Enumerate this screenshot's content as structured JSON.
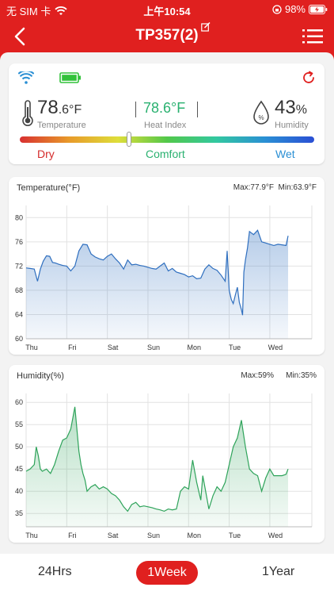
{
  "status_bar": {
    "carrier": "无 SIM 卡",
    "time": "上午10:54",
    "battery": "98%",
    "icons": [
      "wifi-icon",
      "orientation-lock-icon",
      "battery-charging-icon"
    ]
  },
  "nav": {
    "title": "TP357(2)",
    "icons": [
      "back-icon",
      "edit-icon",
      "menu-icon"
    ],
    "bg_color": "#e0201f"
  },
  "summary": {
    "icons": [
      "wifi-icon",
      "battery-icon",
      "refresh-icon",
      "thermometer-icon",
      "humidity-drop-icon"
    ],
    "temperature": {
      "whole": "78",
      "decimal": ".6",
      "unit": "°F",
      "label": "Temperature"
    },
    "heat_index": {
      "value": "78.6°F",
      "label": "Heat Index"
    },
    "humidity": {
      "value": "43",
      "unit": "%",
      "label": "Humidity"
    },
    "comfort_scale": {
      "dry": "Dry",
      "comfort": "Comfort",
      "wet": "Wet",
      "position_fraction": 0.37
    },
    "colors": {
      "heat_index": "#2ab170",
      "dry": "#d42a2a",
      "comfort": "#2ab170",
      "wet": "#2a8fd4",
      "wifi": "#2a8fd4",
      "battery": "#32c23a"
    }
  },
  "temp_chart": {
    "title": "Temperature(°F)",
    "max_text": "Max:77.9°F",
    "min_text": "Min:63.9°F",
    "color": "#2f6fbf"
  },
  "humidity_chart": {
    "title": "Humidity(%)",
    "max_text": "Max:59%",
    "min_text": "Min:35%",
    "color": "#2ea35a"
  },
  "tabs": {
    "items": [
      "24Hrs",
      "1Week",
      "1Year"
    ],
    "active": "1Week"
  },
  "chart_data": [
    {
      "type": "area",
      "title": "Temperature(°F)",
      "xlabel": "",
      "ylabel": "",
      "categories": [
        "Thu",
        "Fri",
        "Sat",
        "Sun",
        "Mon",
        "Tue",
        "Wed"
      ],
      "ylim": [
        60,
        82
      ],
      "yticks": [
        60,
        64,
        68,
        72,
        76,
        80
      ],
      "x": [
        0,
        0.1,
        0.2,
        0.28,
        0.35,
        0.42,
        0.5,
        0.58,
        0.65,
        0.72,
        0.8,
        0.9,
        1.0,
        1.1,
        1.2,
        1.3,
        1.4,
        1.5,
        1.6,
        1.7,
        1.8,
        1.9,
        2.0,
        2.1,
        2.2,
        2.3,
        2.4,
        2.5,
        2.6,
        2.7,
        2.8,
        2.9,
        3.0,
        3.1,
        3.2,
        3.3,
        3.4,
        3.5,
        3.6,
        3.7,
        3.8,
        3.9,
        4.0,
        4.1,
        4.2,
        4.3,
        4.4,
        4.5,
        4.6,
        4.7,
        4.8,
        4.9,
        4.95,
        5.0,
        5.05,
        5.1,
        5.15,
        5.2,
        5.25,
        5.3,
        5.33,
        5.36,
        5.4,
        5.45,
        5.5,
        5.6,
        5.7,
        5.8,
        5.9,
        6.0,
        6.1,
        6.2,
        6.3,
        6.4,
        6.45
      ],
      "values": [
        71.7,
        71.6,
        71.5,
        69.5,
        71.5,
        72.8,
        73.7,
        73.6,
        72.6,
        72.5,
        72.3,
        72.1,
        72.0,
        71.2,
        72.0,
        74.5,
        75.6,
        75.5,
        74.0,
        73.5,
        73.2,
        73.0,
        73.6,
        74.0,
        73.2,
        72.5,
        71.5,
        73.0,
        72.2,
        72.3,
        72.1,
        72.0,
        71.8,
        71.6,
        71.5,
        72.0,
        72.5,
        71.2,
        71.6,
        71.0,
        70.8,
        70.6,
        70.2,
        70.4,
        69.9,
        70.0,
        71.5,
        72.2,
        71.6,
        71.3,
        70.5,
        69.5,
        74.5,
        68.0,
        66.5,
        65.8,
        67.2,
        68.5,
        66.0,
        64.8,
        63.9,
        71.0,
        73.0,
        75.0,
        77.7,
        77.2,
        77.9,
        76.0,
        75.8,
        75.6,
        75.4,
        75.6,
        75.5,
        75.4,
        77.0
      ]
    },
    {
      "type": "area",
      "title": "Humidity(%)",
      "xlabel": "",
      "ylabel": "",
      "categories": [
        "Thu",
        "Fri",
        "Sat",
        "Sun",
        "Mon",
        "Tue",
        "Wed"
      ],
      "ylim": [
        32,
        62
      ],
      "yticks": [
        35,
        40,
        45,
        50,
        55,
        60
      ],
      "x": [
        0,
        0.1,
        0.2,
        0.25,
        0.3,
        0.35,
        0.4,
        0.5,
        0.6,
        0.7,
        0.8,
        0.9,
        1.0,
        1.1,
        1.2,
        1.3,
        1.35,
        1.4,
        1.45,
        1.5,
        1.6,
        1.7,
        1.8,
        1.9,
        2.0,
        2.1,
        2.2,
        2.3,
        2.4,
        2.5,
        2.6,
        2.7,
        2.8,
        2.9,
        3.0,
        3.1,
        3.2,
        3.3,
        3.4,
        3.5,
        3.6,
        3.7,
        3.8,
        3.9,
        4.0,
        4.1,
        4.2,
        4.3,
        4.35,
        4.4,
        4.5,
        4.6,
        4.7,
        4.8,
        4.9,
        5.0,
        5.1,
        5.2,
        5.3,
        5.4,
        5.5,
        5.6,
        5.7,
        5.8,
        5.9,
        6.0,
        6.1,
        6.2,
        6.3,
        6.4,
        6.45
      ],
      "values": [
        44.5,
        45.0,
        46.0,
        50.0,
        48.0,
        45.0,
        44.5,
        45.0,
        44.0,
        46.0,
        49.0,
        51.5,
        52.0,
        54.0,
        59.0,
        49.0,
        46.0,
        44.0,
        42.5,
        40.0,
        41.0,
        41.5,
        40.5,
        41.0,
        40.5,
        39.5,
        39.0,
        38.0,
        36.5,
        35.5,
        37.0,
        37.5,
        36.5,
        36.7,
        36.5,
        36.3,
        36.0,
        35.8,
        35.5,
        36.0,
        35.8,
        36.0,
        40.0,
        41.0,
        40.5,
        47.0,
        42.0,
        38.0,
        43.5,
        41.0,
        36.0,
        39.0,
        41.0,
        40.0,
        42.0,
        46.0,
        50.0,
        52.0,
        56.0,
        50.0,
        45.0,
        44.0,
        43.5,
        40.0,
        43.0,
        45.0,
        43.5,
        43.5,
        43.5,
        43.8,
        45.0
      ]
    }
  ]
}
